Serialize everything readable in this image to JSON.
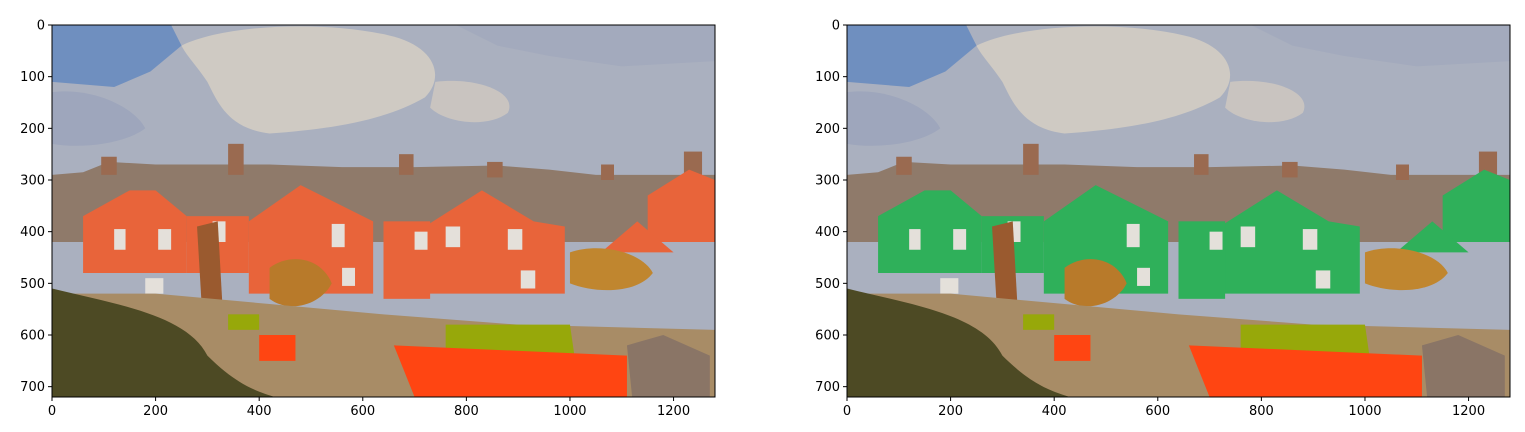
{
  "chart_data": [
    {
      "type": "image",
      "title": "",
      "xlabel": "",
      "ylabel": "",
      "xlim": [
        0,
        1280
      ],
      "ylim": [
        720,
        0
      ],
      "xticks": [
        0,
        200,
        400,
        600,
        800,
        1000,
        1200
      ],
      "yticks": [
        0,
        100,
        200,
        300,
        400,
        500,
        600,
        700
      ],
      "grid": false,
      "content": "color-quantized photo of terraced houses with orange-red roofs/walls",
      "highlight_color": "#e8643a"
    },
    {
      "type": "image",
      "title": "",
      "xlabel": "",
      "ylabel": "",
      "xlim": [
        0,
        1280
      ],
      "ylim": [
        720,
        0
      ],
      "xticks": [
        0,
        200,
        400,
        600,
        800,
        1000,
        1200
      ],
      "yticks": [
        0,
        100,
        200,
        300,
        400,
        500,
        600,
        700
      ],
      "grid": false,
      "content": "same image with house walls recolored green",
      "highlight_color": "#2fb05a"
    }
  ],
  "colors": {
    "sky_blue": "#6f8fbf",
    "sky_grey": "#aab0bf",
    "cloud": "#cfcac3",
    "roof": "#8f7a6a",
    "hedge": "#4d4a24",
    "ground": "#a88c66",
    "lime": "#97a80a",
    "bright_orange": "#ff4512",
    "brown": "#9a5a2f",
    "window": "#e4e0da"
  }
}
